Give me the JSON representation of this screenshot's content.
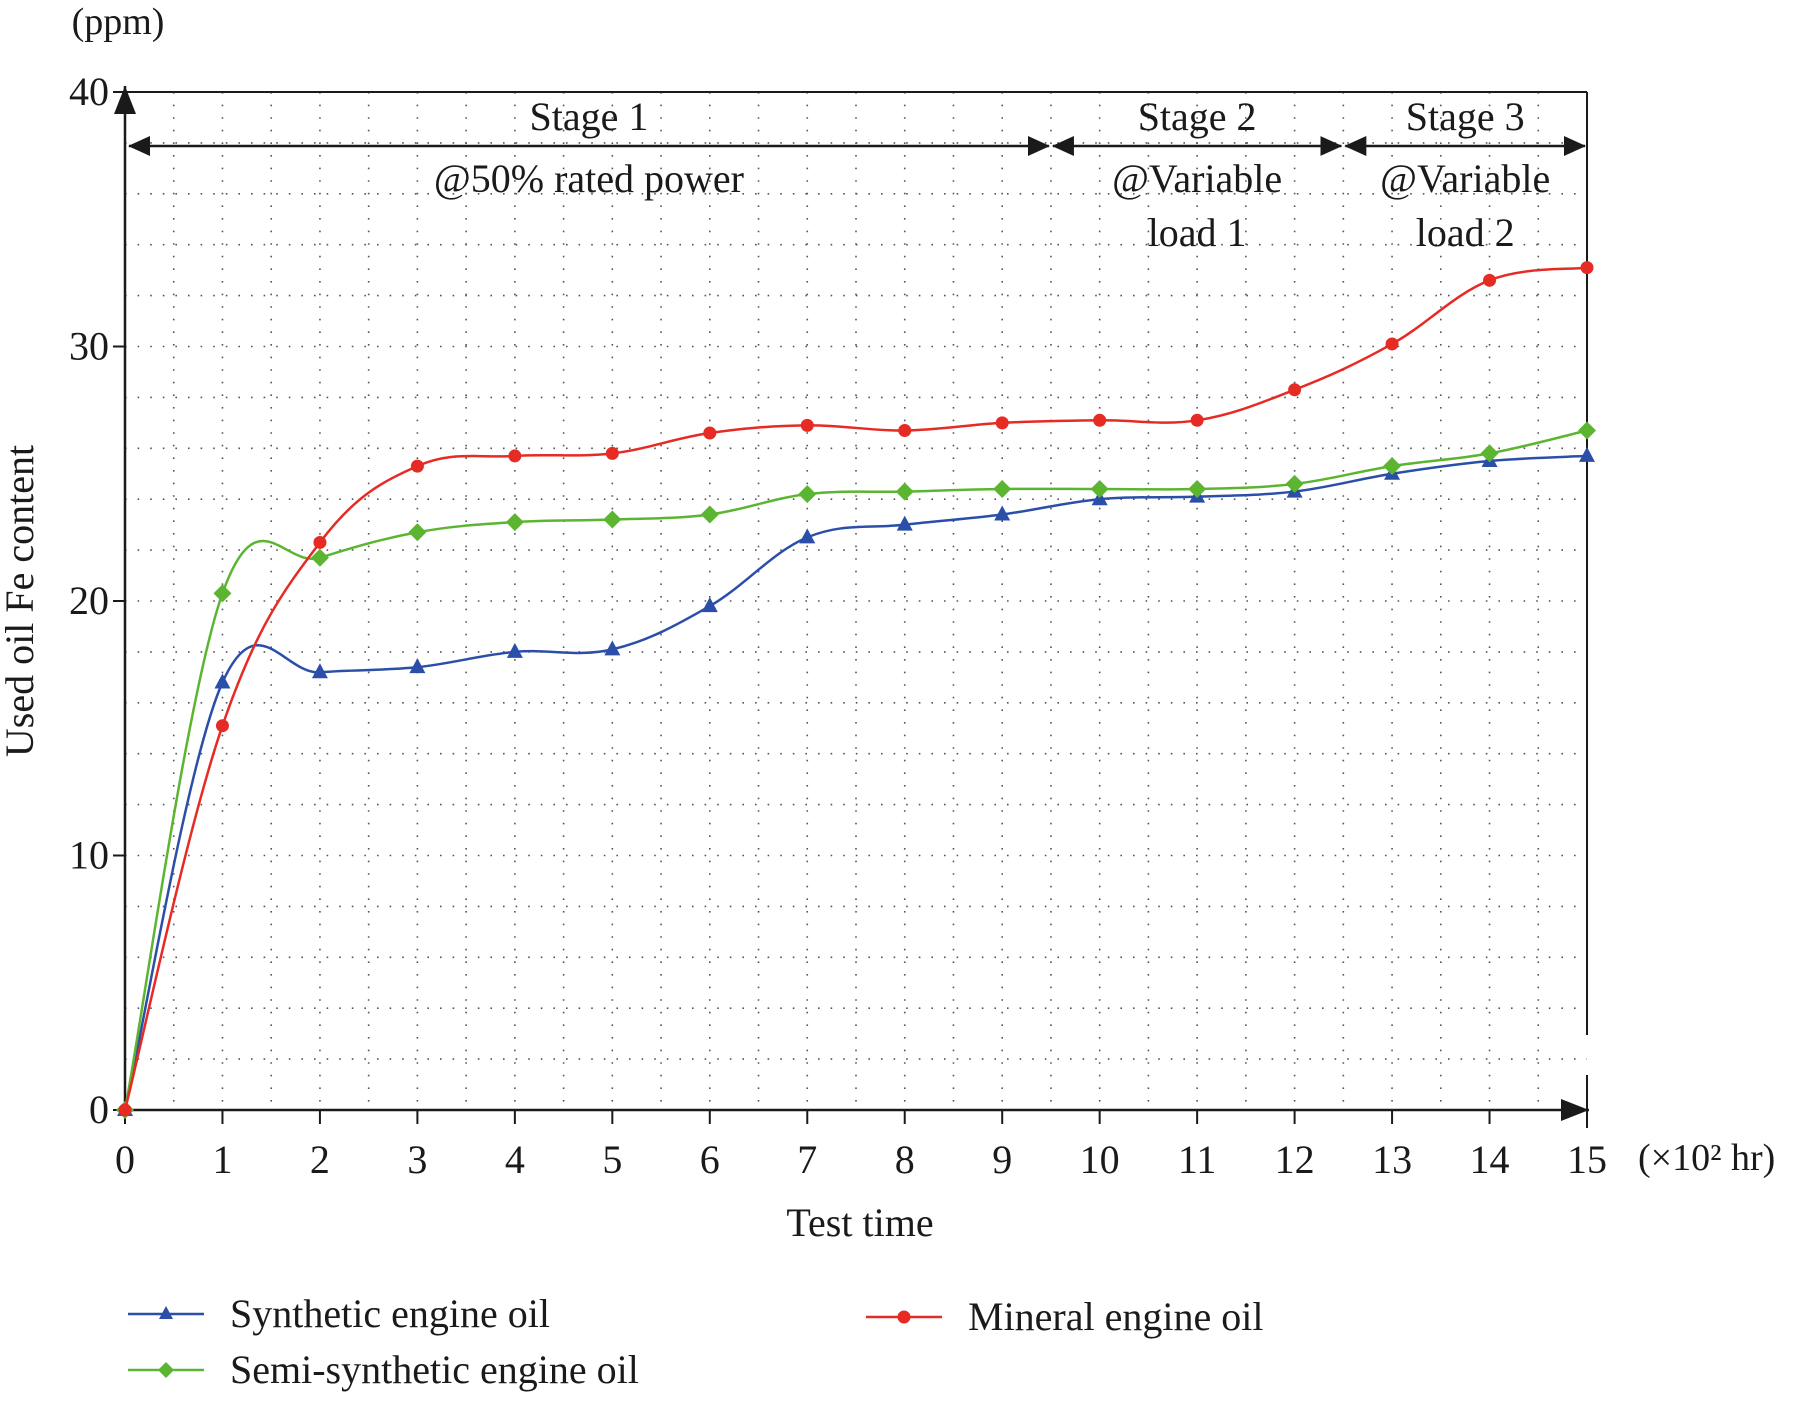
{
  "chart_data": {
    "type": "line",
    "y_unit_label": "(ppm)",
    "ylabel": "Used oil Fe content",
    "xlabel": "Test time",
    "x_unit_label": "(×10² hr)",
    "xlim": [
      0,
      15
    ],
    "ylim": [
      0,
      40
    ],
    "x_ticks": [
      "0",
      "1",
      "2",
      "3",
      "4",
      "5",
      "6",
      "7",
      "8",
      "9",
      "10",
      "11",
      "12",
      "13",
      "14",
      "15"
    ],
    "y_ticks": [
      "0",
      "10",
      "20",
      "30",
      "40"
    ],
    "grid": true,
    "legend_position": "bottom",
    "x": [
      0,
      1,
      2,
      3,
      4,
      5,
      6,
      7,
      8,
      9,
      10,
      11,
      12,
      13,
      14,
      15
    ],
    "series": [
      {
        "name": "Synthetic engine oil",
        "color": "#2b4fa8",
        "marker": "triangle",
        "values": [
          0,
          16.8,
          17.2,
          17.4,
          18.0,
          18.1,
          19.8,
          22.5,
          23.0,
          23.4,
          24.0,
          24.1,
          24.3,
          25.0,
          25.5,
          25.7
        ]
      },
      {
        "name": "Semi-synthetic engine oil",
        "color": "#5cb531",
        "marker": "diamond",
        "values": [
          0,
          20.3,
          21.7,
          22.7,
          23.1,
          23.2,
          23.4,
          24.2,
          24.3,
          24.4,
          24.4,
          24.4,
          24.6,
          25.3,
          25.8,
          26.7
        ]
      },
      {
        "name": "Mineral engine oil",
        "color": "#e52b24",
        "marker": "circle",
        "values": [
          0,
          15.1,
          22.3,
          25.3,
          25.7,
          25.8,
          26.6,
          26.9,
          26.7,
          27.0,
          27.1,
          27.1,
          28.3,
          30.1,
          32.6,
          33.1
        ]
      }
    ],
    "stages": [
      {
        "title": "Stage 1",
        "line1": "@50% rated power",
        "line2": "",
        "x_start": 0,
        "x_end": 9.5
      },
      {
        "title": "Stage 2",
        "line1": "@Variable",
        "line2": "load 1",
        "x_start": 9.5,
        "x_end": 12.5
      },
      {
        "title": "Stage 3",
        "line1": "@Variable",
        "line2": "load 2",
        "x_start": 12.5,
        "x_end": 15
      }
    ]
  }
}
